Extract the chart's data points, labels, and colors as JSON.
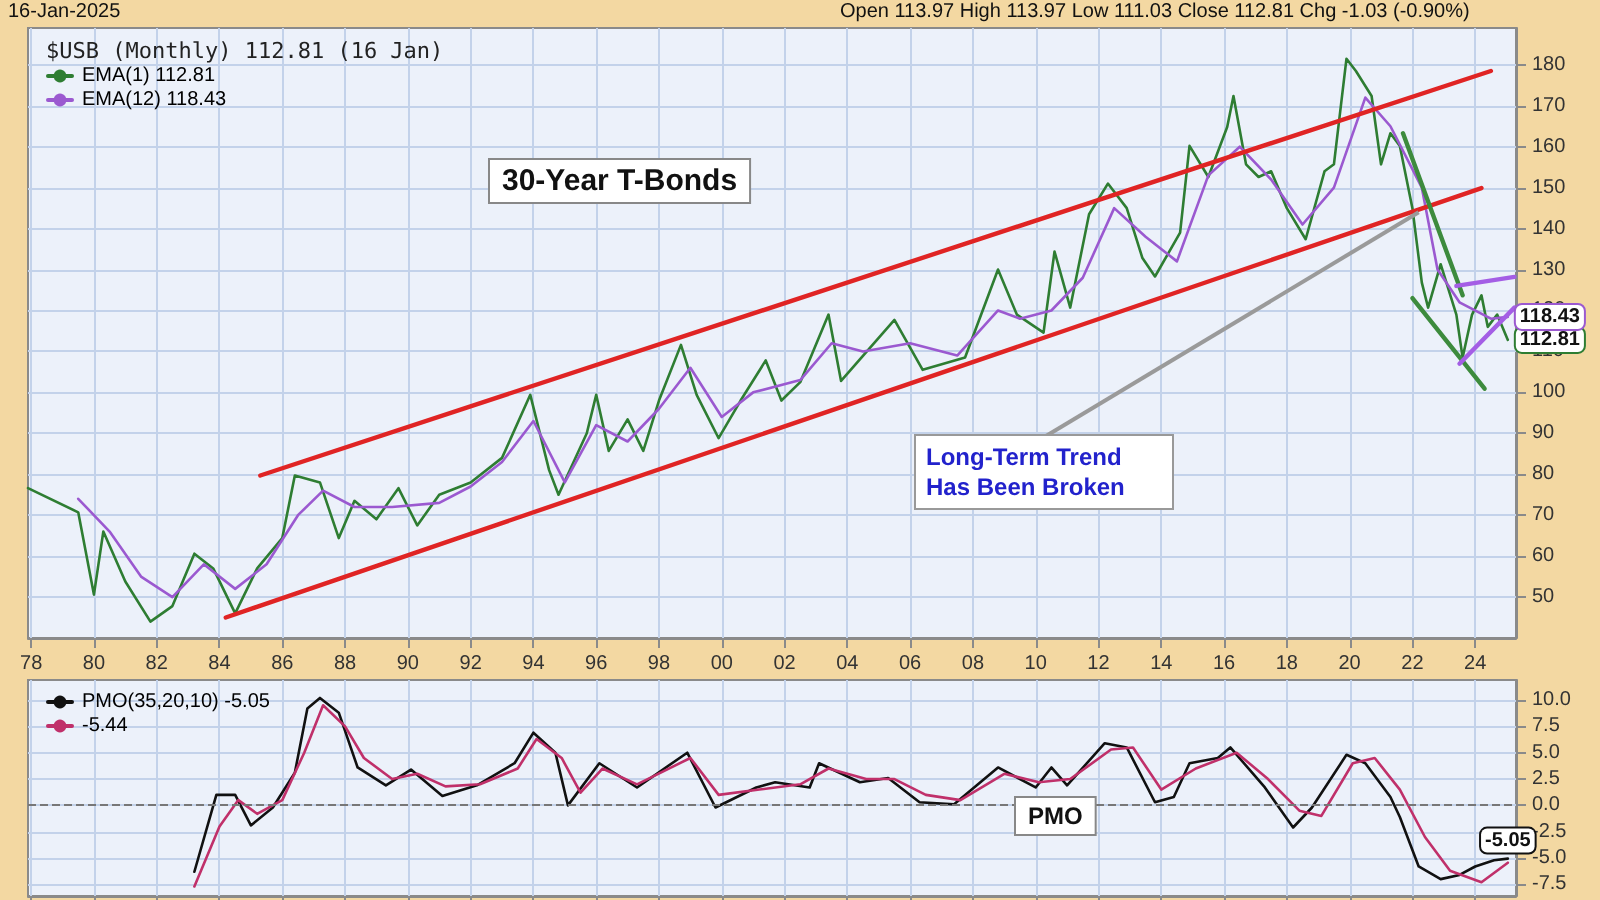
{
  "chart_data": [
    {
      "type": "line",
      "title": "$USB (Monthly) 112.81 (16 Jan)",
      "annotations": [
        "16-Jan-2025",
        "Open 113.97 High 113.97 Low 111.03 Close 112.81 Chg -1.03 (-0.90%)",
        "30-Year T-Bonds",
        {
          "text": "Long-Term Trend Has Been Broken",
          "x": 2022.2,
          "y": 144
        }
      ],
      "xlim": [
        1977.9,
        2025.3
      ],
      "xticks": [
        {
          "value": 1978,
          "label": "78"
        },
        {
          "value": 1980,
          "label": "80"
        },
        {
          "value": 1982,
          "label": "82"
        },
        {
          "value": 1984,
          "label": "84"
        },
        {
          "value": 1986,
          "label": "86"
        },
        {
          "value": 1988,
          "label": "88"
        },
        {
          "value": 1990,
          "label": "90"
        },
        {
          "value": 1992,
          "label": "92"
        },
        {
          "value": 1994,
          "label": "94"
        },
        {
          "value": 1996,
          "label": "96"
        },
        {
          "value": 1998,
          "label": "98"
        },
        {
          "value": 2000,
          "label": "00"
        },
        {
          "value": 2002,
          "label": "02"
        },
        {
          "value": 2004,
          "label": "04"
        },
        {
          "value": 2006,
          "label": "06"
        },
        {
          "value": 2008,
          "label": "08"
        },
        {
          "value": 2010,
          "label": "10"
        },
        {
          "value": 2012,
          "label": "12"
        },
        {
          "value": 2014,
          "label": "14"
        },
        {
          "value": 2016,
          "label": "16"
        },
        {
          "value": 2018,
          "label": "18"
        },
        {
          "value": 2020,
          "label": "20"
        },
        {
          "value": 2022,
          "label": "22"
        },
        {
          "value": 2024,
          "label": "24"
        }
      ],
      "ylim": [
        40,
        189
      ],
      "yticks": [
        50,
        60,
        70,
        80,
        90,
        100,
        110,
        120,
        130,
        140,
        150,
        160,
        170,
        180
      ],
      "grid": true,
      "legend": "top left",
      "series": [
        {
          "name": "EMA(1) 112.81",
          "color": "#2e7d32",
          "x": [
            1977.9,
            1979.5,
            1980.0,
            1980.3,
            1981.0,
            1981.8,
            1982.5,
            1983.2,
            1983.8,
            1984.5,
            1985.2,
            1986.0,
            1986.4,
            1987.2,
            1987.8,
            1988.3,
            1989.0,
            1989.7,
            1990.3,
            1991.0,
            1992.0,
            1993.0,
            1993.9,
            1994.5,
            1994.8,
            1995.7,
            1996.0,
            1996.4,
            1997.0,
            1997.5,
            1998.0,
            1998.7,
            1999.2,
            1999.9,
            2000.6,
            2001.4,
            2001.9,
            2002.5,
            2003.4,
            2003.8,
            2005.5,
            2006.4,
            2007.75,
            2008.8,
            2009.4,
            2010.25,
            2010.6,
            2011.1,
            2011.7,
            2012.3,
            2012.9,
            2013.4,
            2013.8,
            2014.6,
            2014.9,
            2015.5,
            2016.1,
            2016.3,
            2016.7,
            2017.1,
            2017.5,
            2018.0,
            2018.6,
            2019.2,
            2019.5,
            2019.9,
            2020.2,
            2020.7,
            2021.0,
            2021.3,
            2021.6,
            2022.0,
            2022.3,
            2022.5,
            2022.9,
            2023.4,
            2023.6,
            2023.9,
            2024.2,
            2024.4,
            2024.7,
            2025.04
          ],
          "values": [
            76.6,
            70.7,
            50.6,
            66,
            53.8,
            44,
            47.8,
            60.6,
            57,
            46,
            57,
            64.4,
            79.7,
            78,
            64.4,
            73.5,
            69,
            76.6,
            67.5,
            75,
            78,
            84,
            99.4,
            81,
            75,
            90,
            99.4,
            85.7,
            93.4,
            85.7,
            98,
            111.6,
            99.4,
            88.8,
            98,
            107.8,
            98,
            102.5,
            119,
            102.8,
            117.7,
            105.5,
            108.5,
            130,
            119,
            114.6,
            134.4,
            120.7,
            143.5,
            151,
            145,
            132.8,
            128.3,
            139,
            160.2,
            152.6,
            164.8,
            172.4,
            155.7,
            152.6,
            154,
            145,
            137.4,
            154,
            155.7,
            181.5,
            178.5,
            172.4,
            155.7,
            163.3,
            160.2,
            145,
            126.8,
            120.7,
            131.3,
            119,
            108.5,
            119,
            123.7,
            116,
            119,
            112.81
          ],
          "value_labels": [
            null,
            null,
            null,
            null,
            null,
            null,
            null,
            null,
            null,
            null,
            null,
            null,
            null,
            null,
            null,
            null,
            null,
            null,
            null,
            null,
            null,
            null,
            null,
            null,
            null,
            null,
            null,
            null,
            null,
            null,
            null,
            null,
            null,
            null,
            null,
            null,
            null,
            null,
            null,
            null,
            null,
            null,
            null,
            null,
            null,
            null,
            null,
            null,
            null,
            null,
            null,
            null,
            null,
            null,
            null,
            null,
            null,
            null,
            null,
            null,
            null,
            null,
            null,
            null,
            null,
            null,
            null,
            null,
            null,
            null,
            null,
            null,
            null,
            null,
            null,
            null,
            null,
            null,
            null,
            null,
            null,
            "112.81"
          ]
        },
        {
          "name": "EMA(12) 118.43",
          "color": "#9b59d0",
          "x": [
            1979.5,
            1980.5,
            1981.5,
            1982.5,
            1983.5,
            1984.5,
            1985.5,
            1986.5,
            1987.3,
            1988.3,
            1989.5,
            1991.0,
            1992.0,
            1993.0,
            1994.0,
            1995.0,
            1996.0,
            1997.0,
            1998.0,
            1999.0,
            2000.0,
            2001.0,
            2002.5,
            2003.5,
            2004.5,
            2006.0,
            2007.5,
            2008.8,
            2009.5,
            2010.5,
            2011.5,
            2012.5,
            2013.5,
            2014.5,
            2015.5,
            2016.5,
            2017.5,
            2018.5,
            2019.5,
            2020.5,
            2021.3,
            2022.3,
            2022.8,
            2023.5,
            2024.5,
            2025.04
          ],
          "values": [
            74,
            66,
            55,
            50,
            58,
            52,
            58,
            70,
            76,
            72,
            72,
            73,
            77,
            83,
            93,
            78,
            92,
            88,
            96,
            106,
            94,
            100,
            103,
            112,
            110,
            112,
            109,
            120,
            118,
            120,
            128,
            145,
            138,
            132,
            153,
            160,
            152,
            141,
            150,
            172,
            165,
            150,
            130,
            122,
            118,
            118.43
          ],
          "value_labels": [
            null,
            null,
            null,
            null,
            null,
            null,
            null,
            null,
            null,
            null,
            null,
            null,
            null,
            null,
            null,
            null,
            null,
            null,
            null,
            null,
            null,
            null,
            null,
            null,
            null,
            null,
            null,
            null,
            null,
            null,
            null,
            null,
            null,
            null,
            null,
            null,
            null,
            null,
            null,
            null,
            null,
            null,
            null,
            null,
            null,
            "118.43"
          ]
        },
        {
          "color": "#e02424",
          "x": [
            1985.3,
            2024.5
          ],
          "values": [
            79.7,
            178.5
          ]
        },
        {
          "color": "#e02424",
          "x": [
            1984.2,
            2024.2
          ],
          "values": [
            45,
            149.9
          ]
        },
        {
          "color": "#3d8b3d",
          "x": [
            2021.7,
            2023.6
          ],
          "values": [
            163.3,
            123.7
          ]
        },
        {
          "color": "#3d8b3d",
          "x": [
            2022.0,
            2024.3
          ],
          "values": [
            123,
            100.9
          ]
        },
        {
          "color": "#a45ee5",
          "x": [
            2023.4,
            2025.25
          ],
          "values": [
            126,
            128.2
          ]
        },
        {
          "color": "#a45ee5",
          "x": [
            2023.5,
            2025.25
          ],
          "values": [
            107,
            120.7
          ]
        }
      ]
    },
    {
      "type": "line",
      "annotations": [
        "PMO"
      ],
      "xlim": [
        1977.9,
        2025.3
      ],
      "xticks": [
        1978,
        1980,
        1982,
        1984,
        1986,
        1988,
        1990,
        1992,
        1994,
        1996,
        1998,
        2000,
        2002,
        2004,
        2006,
        2008,
        2010,
        2012,
        2014,
        2016,
        2018,
        2020,
        2022,
        2024
      ],
      "ylim": [
        -8.6,
        11.9
      ],
      "yticks": [
        {
          "value": -7.5,
          "label": "-7.5"
        },
        {
          "value": -5,
          "label": "-5.0"
        },
        {
          "value": -2.5,
          "label": "-2.5"
        },
        {
          "value": 0,
          "label": "0.0"
        },
        {
          "value": 2.5,
          "label": "2.5"
        },
        {
          "value": 5,
          "label": "5.0"
        },
        {
          "value": 7.5,
          "label": "7.5"
        },
        {
          "value": 10,
          "label": "10.0"
        }
      ],
      "tick_labels": "y",
      "grid": true,
      "legend": "top left",
      "ref_lines": [
        {
          "axis": "y",
          "value": 0,
          "color": "#777777",
          "line_style": "dashed"
        }
      ],
      "series": [
        {
          "name": "PMO(35,20,10) -5.05",
          "color": "#111111",
          "x": [
            1983.2,
            1983.9,
            1984.5,
            1985.0,
            1985.7,
            1986.4,
            1986.8,
            1987.2,
            1987.8,
            1988.4,
            1989.3,
            1990.1,
            1991.1,
            1992.2,
            1993.4,
            1994.0,
            1994.7,
            1995.1,
            1996.1,
            1997.3,
            1998.9,
            1999.8,
            2001.1,
            2001.7,
            2002.8,
            2003.1,
            2004.4,
            2005.3,
            2006.3,
            2007.4,
            2008.8,
            2010.0,
            2010.5,
            2011.0,
            2012.2,
            2012.9,
            2013.8,
            2014.4,
            2014.9,
            2015.8,
            2016.2,
            2017.3,
            2018.2,
            2018.8,
            2019.9,
            2020.5,
            2021.3,
            2021.6,
            2022.2,
            2022.9,
            2023.5,
            2024.0,
            2024.6,
            2025.04
          ],
          "values": [
            -6.3,
            1.0,
            1.0,
            -1.9,
            -0.2,
            3.1,
            9.2,
            10.2,
            8.8,
            3.6,
            1.9,
            3.4,
            0.9,
            1.9,
            4.0,
            6.9,
            5.0,
            0,
            4.0,
            1.7,
            5.0,
            -0.2,
            1.7,
            2.2,
            1.7,
            4.0,
            2.2,
            2.6,
            0.3,
            0.1,
            3.6,
            1.7,
            3.6,
            1.9,
            5.9,
            5.5,
            0.3,
            0.8,
            4.0,
            4.5,
            5.5,
            1.7,
            -2.1,
            -0.2,
            4.8,
            4.0,
            0.8,
            -1.1,
            -5.8,
            -7.0,
            -6.6,
            -5.8,
            -5.2,
            -5.05
          ],
          "value_labels": [
            null,
            null,
            null,
            null,
            null,
            null,
            null,
            null,
            null,
            null,
            null,
            null,
            null,
            null,
            null,
            null,
            null,
            null,
            null,
            null,
            null,
            null,
            null,
            null,
            null,
            null,
            null,
            null,
            null,
            null,
            null,
            null,
            null,
            null,
            null,
            null,
            null,
            null,
            null,
            null,
            null,
            null,
            null,
            null,
            null,
            null,
            null,
            null,
            null,
            null,
            null,
            null,
            null,
            "-5.05"
          ]
        },
        {
          "name": "-5.44",
          "color": "#c0306a",
          "x": [
            1983.2,
            1984.0,
            1984.6,
            1985.2,
            1986.0,
            1986.7,
            1987.3,
            1988.0,
            1988.6,
            1989.5,
            1990.3,
            1991.2,
            1992.3,
            1993.5,
            1994.1,
            1994.9,
            1995.5,
            1996.2,
            1997.3,
            1999.0,
            1999.9,
            2001.2,
            2002.5,
            2003.4,
            2004.6,
            2005.5,
            2006.5,
            2007.6,
            2009.0,
            2010.1,
            2011.1,
            2012.4,
            2013.1,
            2014.0,
            2015.1,
            2016.4,
            2017.4,
            2018.4,
            2019.1,
            2020.1,
            2020.8,
            2021.6,
            2022.4,
            2023.2,
            2024.2,
            2025.04
          ],
          "values": [
            -7.7,
            -2,
            0.5,
            -0.8,
            0.5,
            5,
            9.5,
            7.5,
            4.5,
            2.5,
            3,
            1.8,
            2.0,
            3.5,
            6.3,
            4.5,
            1.2,
            3.5,
            2.0,
            4.5,
            1.0,
            1.5,
            2.0,
            3.5,
            2.5,
            2.5,
            1.0,
            0.5,
            3.0,
            2.2,
            2.5,
            5.3,
            5.5,
            1.5,
            3.5,
            5.0,
            2.5,
            -0.5,
            -1.0,
            4.0,
            4.5,
            1.5,
            -3.0,
            -6.2,
            -7.3,
            -5.44
          ]
        }
      ]
    }
  ]
}
